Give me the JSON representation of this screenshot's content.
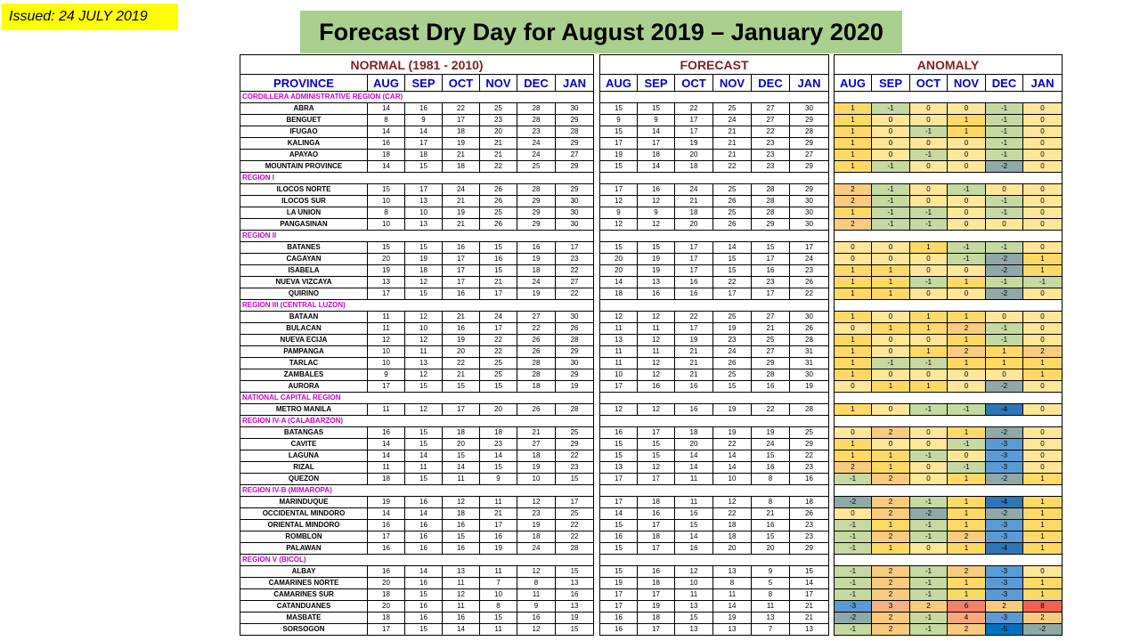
{
  "issued": "Issued: 24 JULY 2019",
  "title": "Forecast Dry Day  for August 2019 – January 2020",
  "normal_title": "NORMAL (1981 - 2010)",
  "forecast_title": "FORECAST",
  "anomaly_title": "ANOMALY",
  "province_header": "PROVINCE",
  "months": [
    "AUG",
    "SEP",
    "OCT",
    "NOV",
    "DEC",
    "JAN"
  ],
  "colors": {
    "-5": "#0070c0",
    "-4": "#2e75b6",
    "-3": "#5b9bd5",
    "-2": "#8ea9a8",
    "-1": "#c5d9a1",
    "0": "#ffe699",
    "1": "#ffd966",
    "2": "#f8cb7e",
    "3": "#f4b183",
    "4": "#f8a77a",
    "6": "#f4806a",
    "8": "#f4604f"
  },
  "regions": [
    {
      "name": "CORDILLERA ADMINISTRATIVE REGION (CAR)",
      "rows": [
        {
          "p": "ABRA",
          "n": [
            14,
            16,
            22,
            25,
            28,
            30
          ],
          "f": [
            15,
            15,
            22,
            25,
            27,
            30
          ],
          "a": [
            1,
            -1,
            0,
            0,
            -1,
            0
          ]
        },
        {
          "p": "BENGUET",
          "n": [
            8,
            9,
            17,
            23,
            28,
            29
          ],
          "f": [
            9,
            9,
            17,
            24,
            27,
            29
          ],
          "a": [
            1,
            0,
            0,
            1,
            -1,
            0
          ]
        },
        {
          "p": "IFUGAO",
          "n": [
            14,
            14,
            18,
            20,
            23,
            28
          ],
          "f": [
            15,
            14,
            17,
            21,
            22,
            28
          ],
          "a": [
            1,
            0,
            -1,
            1,
            -1,
            0
          ]
        },
        {
          "p": "KALINGA",
          "n": [
            16,
            17,
            19,
            21,
            24,
            29
          ],
          "f": [
            17,
            17,
            19,
            21,
            23,
            29
          ],
          "a": [
            1,
            0,
            0,
            0,
            -1,
            0
          ]
        },
        {
          "p": "APAYAO",
          "n": [
            18,
            18,
            21,
            21,
            24,
            27
          ],
          "f": [
            19,
            18,
            20,
            21,
            23,
            27
          ],
          "a": [
            1,
            0,
            -1,
            0,
            -1,
            0
          ]
        },
        {
          "p": "MOUNTAIN PROVINCE",
          "n": [
            14,
            15,
            18,
            22,
            25,
            29
          ],
          "f": [
            15,
            14,
            18,
            22,
            23,
            29
          ],
          "a": [
            1,
            -1,
            0,
            0,
            -2,
            0
          ]
        }
      ]
    },
    {
      "name": "REGION I",
      "rows": [
        {
          "p": "ILOCOS NORTE",
          "n": [
            15,
            17,
            24,
            26,
            28,
            29
          ],
          "f": [
            17,
            16,
            24,
            25,
            28,
            29
          ],
          "a": [
            2,
            -1,
            0,
            -1,
            0,
            0
          ]
        },
        {
          "p": "ILOCOS SUR",
          "n": [
            10,
            13,
            21,
            26,
            29,
            30
          ],
          "f": [
            12,
            12,
            21,
            26,
            28,
            30
          ],
          "a": [
            2,
            -1,
            0,
            0,
            -1,
            0
          ]
        },
        {
          "p": "LA UNION",
          "n": [
            8,
            10,
            19,
            25,
            29,
            30
          ],
          "f": [
            9,
            9,
            18,
            25,
            28,
            30
          ],
          "a": [
            1,
            -1,
            -1,
            0,
            -1,
            0
          ]
        },
        {
          "p": "PANGASINAN",
          "n": [
            10,
            13,
            21,
            26,
            29,
            30
          ],
          "f": [
            12,
            12,
            20,
            26,
            29,
            30
          ],
          "a": [
            2,
            -1,
            -1,
            0,
            0,
            0
          ]
        }
      ]
    },
    {
      "name": "REGION II",
      "rows": [
        {
          "p": "BATANES",
          "n": [
            15,
            15,
            16,
            15,
            16,
            17
          ],
          "f": [
            15,
            15,
            17,
            14,
            15,
            17
          ],
          "a": [
            0,
            0,
            1,
            -1,
            -1,
            0
          ]
        },
        {
          "p": "CAGAYAN",
          "n": [
            20,
            19,
            17,
            16,
            19,
            23
          ],
          "f": [
            20,
            19,
            17,
            15,
            17,
            24
          ],
          "a": [
            0,
            0,
            0,
            -1,
            -2,
            1
          ]
        },
        {
          "p": "ISABELA",
          "n": [
            19,
            18,
            17,
            15,
            18,
            22
          ],
          "f": [
            20,
            19,
            17,
            15,
            16,
            23
          ],
          "a": [
            1,
            1,
            0,
            0,
            -2,
            1
          ]
        },
        {
          "p": "NUEVA VIZCAYA",
          "n": [
            13,
            12,
            17,
            21,
            24,
            27
          ],
          "f": [
            14,
            13,
            16,
            22,
            23,
            26
          ],
          "a": [
            1,
            1,
            -1,
            1,
            -1,
            -1
          ]
        },
        {
          "p": "QUIRINO",
          "n": [
            17,
            15,
            16,
            17,
            19,
            22
          ],
          "f": [
            18,
            16,
            16,
            17,
            17,
            22
          ],
          "a": [
            1,
            1,
            0,
            0,
            -2,
            0
          ]
        }
      ]
    },
    {
      "name": "REGION III (CENTRAL LUZON)",
      "rows": [
        {
          "p": "BATAAN",
          "n": [
            11,
            12,
            21,
            24,
            27,
            30
          ],
          "f": [
            12,
            12,
            22,
            25,
            27,
            30
          ],
          "a": [
            1,
            0,
            1,
            1,
            0,
            0
          ]
        },
        {
          "p": "BULACAN",
          "n": [
            11,
            10,
            16,
            17,
            22,
            26
          ],
          "f": [
            11,
            11,
            17,
            19,
            21,
            26
          ],
          "a": [
            0,
            1,
            1,
            2,
            -1,
            0
          ]
        },
        {
          "p": "NUEVA ECIJA",
          "n": [
            12,
            12,
            19,
            22,
            26,
            28
          ],
          "f": [
            13,
            12,
            19,
            23,
            25,
            28
          ],
          "a": [
            1,
            0,
            0,
            1,
            -1,
            0
          ]
        },
        {
          "p": "PAMPANGA",
          "n": [
            10,
            11,
            20,
            22,
            26,
            29
          ],
          "f": [
            11,
            11,
            21,
            24,
            27,
            31
          ],
          "a": [
            1,
            0,
            1,
            2,
            1,
            2
          ]
        },
        {
          "p": "TARLAC",
          "n": [
            10,
            13,
            22,
            25,
            28,
            30
          ],
          "f": [
            11,
            12,
            21,
            26,
            29,
            31
          ],
          "a": [
            1,
            -1,
            -1,
            1,
            1,
            1
          ]
        },
        {
          "p": "ZAMBALES",
          "n": [
            9,
            12,
            21,
            25,
            28,
            29
          ],
          "f": [
            10,
            12,
            21,
            25,
            28,
            30
          ],
          "a": [
            1,
            0,
            0,
            0,
            0,
            1
          ]
        },
        {
          "p": "AURORA",
          "n": [
            17,
            15,
            15,
            15,
            18,
            19
          ],
          "f": [
            17,
            16,
            16,
            15,
            16,
            19
          ],
          "a": [
            0,
            1,
            1,
            0,
            -2,
            0
          ]
        }
      ]
    },
    {
      "name": "NATIONAL CAPITAL REGION",
      "rows": [
        {
          "p": "METRO MANILA",
          "n": [
            11,
            12,
            17,
            20,
            26,
            28
          ],
          "f": [
            12,
            12,
            16,
            19,
            22,
            28
          ],
          "a": [
            1,
            0,
            -1,
            -1,
            -4,
            0
          ]
        }
      ]
    },
    {
      "name": "REGION IV-A  (CALABARZON)",
      "rows": [
        {
          "p": "BATANGAS",
          "n": [
            16,
            15,
            18,
            18,
            21,
            25
          ],
          "f": [
            16,
            17,
            18,
            19,
            19,
            25
          ],
          "a": [
            0,
            2,
            0,
            1,
            -2,
            0
          ]
        },
        {
          "p": "CAVITE",
          "n": [
            14,
            15,
            20,
            23,
            27,
            29
          ],
          "f": [
            15,
            15,
            20,
            22,
            24,
            29
          ],
          "a": [
            1,
            0,
            0,
            -1,
            -3,
            0
          ]
        },
        {
          "p": "LAGUNA",
          "n": [
            14,
            14,
            15,
            14,
            18,
            22
          ],
          "f": [
            15,
            15,
            14,
            14,
            15,
            22
          ],
          "a": [
            1,
            1,
            -1,
            0,
            -3,
            0
          ]
        },
        {
          "p": "RIZAL",
          "n": [
            11,
            11,
            14,
            15,
            19,
            23
          ],
          "f": [
            13,
            12,
            14,
            14,
            16,
            23
          ],
          "a": [
            2,
            1,
            0,
            -1,
            -3,
            0
          ]
        },
        {
          "p": "QUEZON",
          "n": [
            18,
            15,
            11,
            9,
            10,
            15
          ],
          "f": [
            17,
            17,
            11,
            10,
            8,
            16
          ],
          "a": [
            -1,
            2,
            0,
            1,
            -2,
            1
          ]
        }
      ]
    },
    {
      "name": "REGION IV-B  (MIMAROPA)",
      "rows": [
        {
          "p": "MARINDUQUE",
          "n": [
            19,
            16,
            12,
            11,
            12,
            17
          ],
          "f": [
            17,
            18,
            11,
            12,
            8,
            18
          ],
          "a": [
            -2,
            2,
            -1,
            1,
            -4,
            1
          ]
        },
        {
          "p": "OCCIDENTAL MINDORO",
          "n": [
            14,
            14,
            18,
            21,
            23,
            25
          ],
          "f": [
            14,
            16,
            16,
            22,
            21,
            26
          ],
          "a": [
            0,
            2,
            -2,
            1,
            -2,
            1
          ]
        },
        {
          "p": "ORIENTAL MINDORO",
          "n": [
            16,
            16,
            16,
            17,
            19,
            22
          ],
          "f": [
            15,
            17,
            15,
            18,
            16,
            23
          ],
          "a": [
            -1,
            1,
            -1,
            1,
            -3,
            1
          ]
        },
        {
          "p": "ROMBLON",
          "n": [
            17,
            16,
            15,
            16,
            18,
            22
          ],
          "f": [
            16,
            18,
            14,
            18,
            15,
            23
          ],
          "a": [
            -1,
            2,
            -1,
            2,
            -3,
            1
          ]
        },
        {
          "p": "PALAWAN",
          "n": [
            16,
            16,
            16,
            19,
            24,
            28
          ],
          "f": [
            15,
            17,
            16,
            20,
            20,
            29
          ],
          "a": [
            -1,
            1,
            0,
            1,
            -4,
            1
          ]
        }
      ]
    },
    {
      "name": "REGION V (BICOL)",
      "rows": [
        {
          "p": "ALBAY",
          "n": [
            16,
            14,
            13,
            11,
            12,
            15
          ],
          "f": [
            15,
            16,
            12,
            13,
            9,
            15
          ],
          "a": [
            -1,
            2,
            -1,
            2,
            -3,
            0
          ]
        },
        {
          "p": "CAMARINES NORTE",
          "n": [
            20,
            16,
            11,
            7,
            8,
            13
          ],
          "f": [
            19,
            18,
            10,
            8,
            5,
            14
          ],
          "a": [
            -1,
            2,
            -1,
            1,
            -3,
            1
          ]
        },
        {
          "p": "CAMARINES SUR",
          "n": [
            18,
            15,
            12,
            10,
            11,
            16
          ],
          "f": [
            17,
            17,
            11,
            11,
            8,
            17
          ],
          "a": [
            -1,
            2,
            -1,
            1,
            -3,
            1
          ]
        },
        {
          "p": "CATANDUANES",
          "n": [
            20,
            16,
            11,
            8,
            9,
            13
          ],
          "f": [
            17,
            19,
            13,
            14,
            11,
            21
          ],
          "a": [
            -3,
            3,
            2,
            6,
            2,
            8
          ]
        },
        {
          "p": "MASBATE",
          "n": [
            18,
            16,
            16,
            15,
            16,
            19
          ],
          "f": [
            16,
            18,
            15,
            19,
            13,
            21
          ],
          "a": [
            -2,
            2,
            -1,
            4,
            -3,
            2
          ]
        },
        {
          "p": "SORSOGON",
          "n": [
            17,
            15,
            14,
            11,
            12,
            15
          ],
          "f": [
            16,
            17,
            13,
            13,
            7,
            13
          ],
          "a": [
            -1,
            2,
            -1,
            2,
            -5,
            -2
          ]
        }
      ]
    }
  ]
}
